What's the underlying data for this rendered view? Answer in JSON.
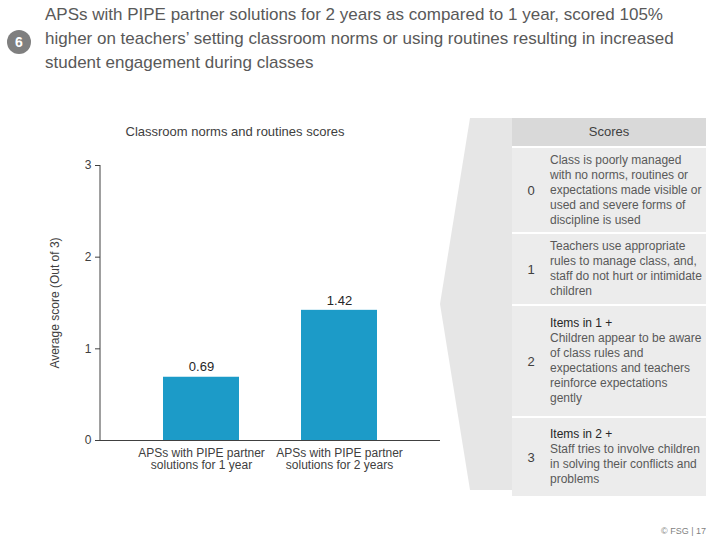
{
  "slide": {
    "number": "6",
    "title": "APSs with PIPE partner solutions for 2 years as compared to 1 year, scored 105% higher on teachers’ setting classroom norms or using routines resulting in increased student engagement during classes",
    "footer": "© FSG | 17"
  },
  "chart_data": {
    "type": "bar",
    "title": "Classroom norms and routines scores",
    "y_label": "Average score (Out of 3)",
    "categories": [
      "APSs with PIPE partner solutions for 1 year",
      "APSs with PIPE partner solutions for 2 years"
    ],
    "values": [
      0.69,
      1.42
    ],
    "color": "#1c9bc8",
    "ylim": [
      0,
      3
    ],
    "yticks": [
      0,
      1,
      2,
      3
    ],
    "grid": false,
    "data_labels": true
  },
  "score_legend": {
    "title": "Scores",
    "rows": [
      {
        "score": "0",
        "prefix": "",
        "text": "Class is poorly managed with no norms, routines or expectations made visible or used and severe forms of discipline is used"
      },
      {
        "score": "1",
        "prefix": "",
        "text": "Teachers use appropriate rules to manage class, and, staff do not hurt or intimidate children"
      },
      {
        "score": "2",
        "prefix": "Items in 1 +",
        "text": "Children appear to be aware of class rules and expectations and teachers reinforce expectations gently"
      },
      {
        "score": "3",
        "prefix": "Items in 2 +",
        "text": "Staff tries to involve children in solving their conflicts and problems"
      }
    ]
  }
}
